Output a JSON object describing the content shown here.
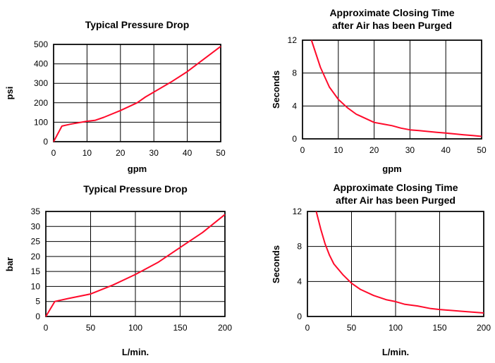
{
  "chart_data": [
    {
      "type": "line",
      "title": "Typical Pressure Drop",
      "xlabel": "gpm",
      "ylabel": "psi",
      "xlim": [
        0,
        50
      ],
      "ylim": [
        0,
        500
      ],
      "xticks": [
        0,
        10,
        20,
        30,
        40,
        50
      ],
      "yticks": [
        0,
        100,
        200,
        300,
        400,
        500
      ],
      "grid": true,
      "series_color": "#ff0a2a",
      "x": [
        0,
        2.5,
        5,
        10,
        12.5,
        15,
        20,
        25,
        27.5,
        30,
        35,
        40,
        45,
        50
      ],
      "y": [
        0,
        80,
        90,
        105,
        110,
        125,
        160,
        200,
        230,
        255,
        305,
        360,
        425,
        490
      ]
    },
    {
      "type": "line",
      "title": "Approximate Closing Time after Air has been Purged",
      "title_lines": [
        "Approximate Closing Time",
        "after Air has been Purged"
      ],
      "xlabel": "gpm",
      "ylabel": "Seconds",
      "xlim": [
        0,
        50
      ],
      "ylim": [
        0,
        12
      ],
      "xticks": [
        0,
        10,
        20,
        30,
        40,
        50
      ],
      "yticks": [
        0,
        4,
        8,
        12
      ],
      "grid": true,
      "series_color": "#ff0a2a",
      "x": [
        2.5,
        5,
        7.5,
        10,
        12.5,
        15,
        17.5,
        20,
        22.5,
        25,
        27.5,
        30,
        32.5,
        35,
        37.5,
        40,
        42.5,
        45,
        47.5,
        50
      ],
      "y": [
        12,
        8.7,
        6.3,
        4.8,
        3.8,
        3.0,
        2.5,
        2.0,
        1.8,
        1.6,
        1.3,
        1.1,
        1.0,
        0.9,
        0.8,
        0.7,
        0.6,
        0.5,
        0.4,
        0.3
      ]
    },
    {
      "type": "line",
      "title": "Typical Pressure Drop",
      "xlabel": "L/min.",
      "ylabel": "bar",
      "xlim": [
        0,
        200
      ],
      "ylim": [
        0,
        35
      ],
      "xticks": [
        0,
        50,
        100,
        150,
        200
      ],
      "yticks": [
        0,
        5,
        10,
        15,
        20,
        25,
        30,
        35
      ],
      "grid": true,
      "series_color": "#ff0a2a",
      "x": [
        0,
        10,
        25,
        50,
        75,
        100,
        125,
        150,
        175,
        200
      ],
      "y": [
        0,
        5,
        6,
        7.5,
        10.5,
        14,
        18,
        23,
        28,
        34
      ]
    },
    {
      "type": "line",
      "title": "Approximate Closing Time after Air has been Purged",
      "title_lines": [
        "Approximate Closing Time",
        "after Air has been Purged"
      ],
      "xlabel": "L/min.",
      "ylabel": "Seconds",
      "xlim": [
        0,
        200
      ],
      "ylim": [
        0,
        12
      ],
      "xticks": [
        0,
        50,
        100,
        150,
        200
      ],
      "yticks": [
        0,
        4,
        8,
        12
      ],
      "grid": true,
      "series_color": "#ff0a2a",
      "x": [
        10,
        15,
        20,
        25,
        30,
        40,
        50,
        60,
        75,
        90,
        100,
        110,
        125,
        140,
        150,
        175,
        200
      ],
      "y": [
        12,
        10,
        8.3,
        7,
        6,
        4.8,
        3.8,
        3.1,
        2.4,
        1.9,
        1.7,
        1.4,
        1.2,
        0.9,
        0.8,
        0.6,
        0.4
      ]
    }
  ]
}
